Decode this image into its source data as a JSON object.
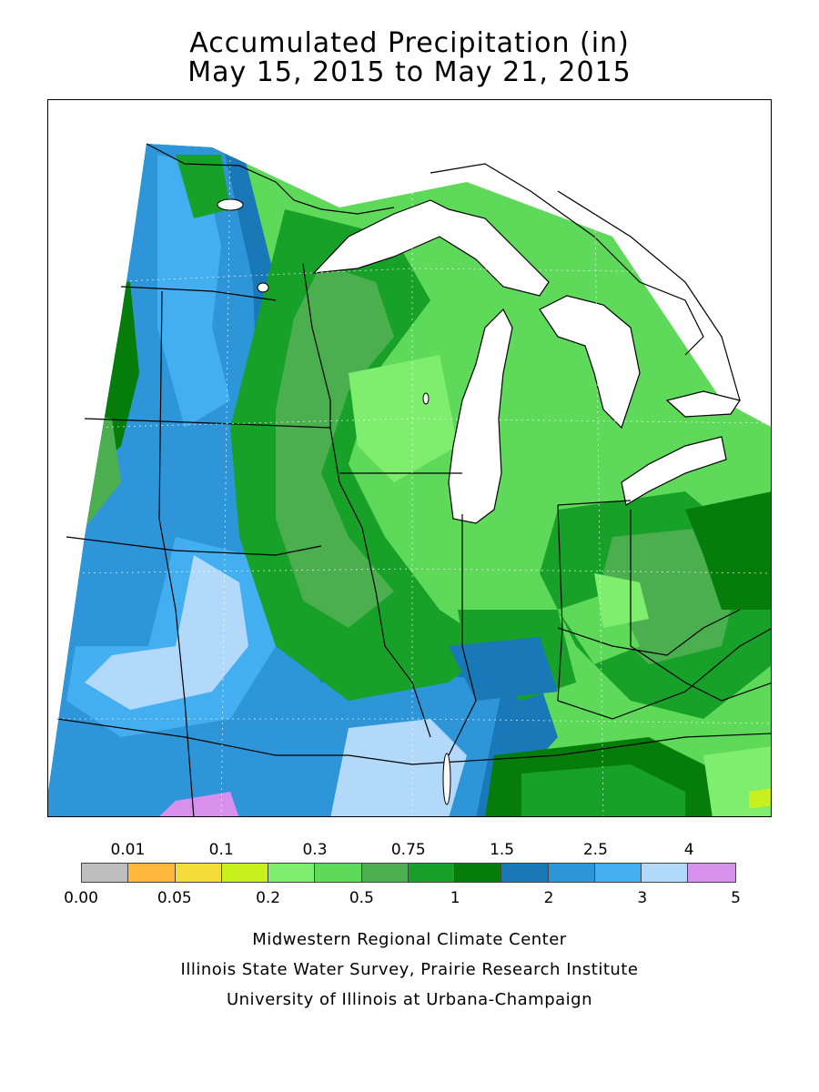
{
  "title": {
    "line1": "Accumulated Precipitation (in)",
    "line2": "May 15, 2015 to May 21, 2015"
  },
  "legend": {
    "colors": [
      "#bebebe",
      "#ffb83b",
      "#f4dc3b",
      "#c8ef1e",
      "#7fed6e",
      "#5fd95a",
      "#4caf4f",
      "#17a128",
      "#067d0b",
      "#1878b8",
      "#2e96d8",
      "#43aef0",
      "#b2d8fa",
      "#d890ed"
    ],
    "labels_top": [
      "0.01",
      "0.1",
      "0.3",
      "0.75",
      "1.5",
      "2.5",
      "4"
    ],
    "labels_bottom": [
      "0.00",
      "0.05",
      "0.2",
      "0.5",
      "1",
      "2",
      "3",
      "5"
    ]
  },
  "credits": {
    "line1": "Midwestern Regional Climate Center",
    "line2": "Illinois State Water Survey, Prairie Research Institute",
    "line3": "University of Illinois at Urbana-Champaign"
  }
}
